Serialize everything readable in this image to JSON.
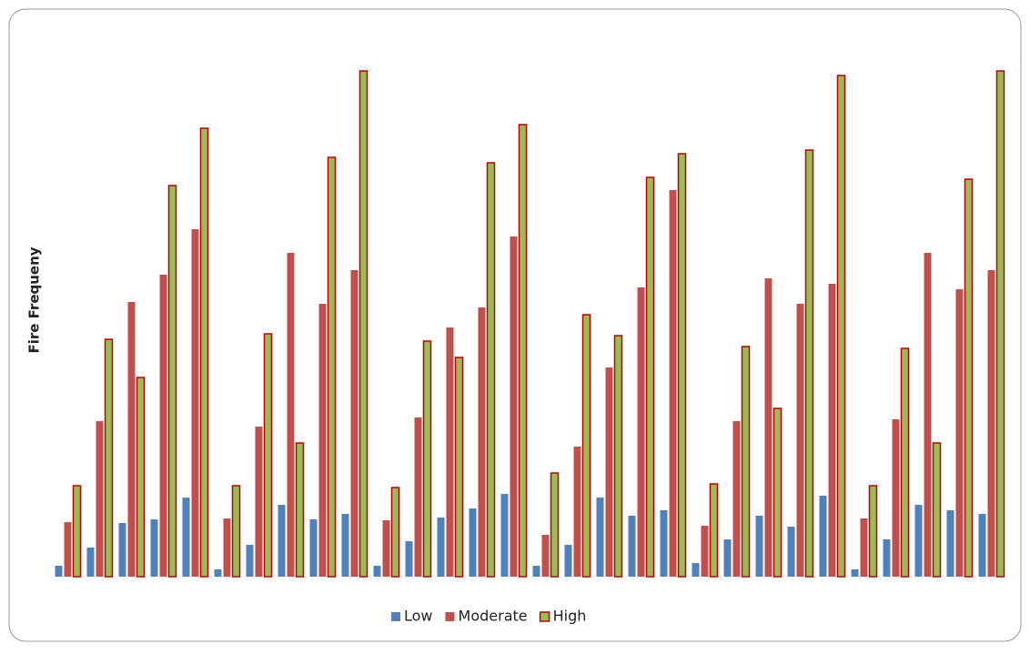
{
  "chart_data": {
    "type": "bar",
    "ylabel": "Fire Frequeny",
    "categories": [
      null,
      null,
      null,
      null,
      null,
      null,
      null,
      null,
      null,
      null,
      null,
      null,
      null,
      null,
      null,
      null,
      null,
      null,
      null,
      null,
      null,
      null,
      null,
      null,
      null,
      null,
      null,
      null,
      null,
      null
    ],
    "series": [
      {
        "name": "Low",
        "color": "#4f81bd",
        "values": [
          12,
          32,
          59,
          63,
          87,
          8,
          35,
          79,
          63,
          69,
          12,
          39,
          65,
          75,
          91,
          12,
          35,
          87,
          67,
          73,
          15,
          41,
          67,
          55,
          89,
          8,
          41,
          79,
          73,
          69
        ]
      },
      {
        "name": "Moderate",
        "color": "#c0504d",
        "values": [
          60,
          171,
          302,
          332,
          382,
          64,
          165,
          356,
          300,
          337,
          62,
          175,
          274,
          296,
          374,
          46,
          143,
          230,
          318,
          425,
          56,
          171,
          328,
          300,
          322,
          64,
          173,
          356,
          316,
          337
        ]
      },
      {
        "name": "High",
        "color": "#9bbb59",
        "edgecolor": "#c00000",
        "values": [
          100,
          261,
          219,
          430,
          493,
          100,
          267,
          147,
          461,
          556,
          98,
          259,
          241,
          455,
          497,
          114,
          288,
          265,
          439,
          465,
          102,
          253,
          185,
          469,
          551,
          100,
          251,
          147,
          437,
          556
        ]
      }
    ],
    "ylim": [
      0,
      556
    ],
    "legend": "bottom"
  }
}
